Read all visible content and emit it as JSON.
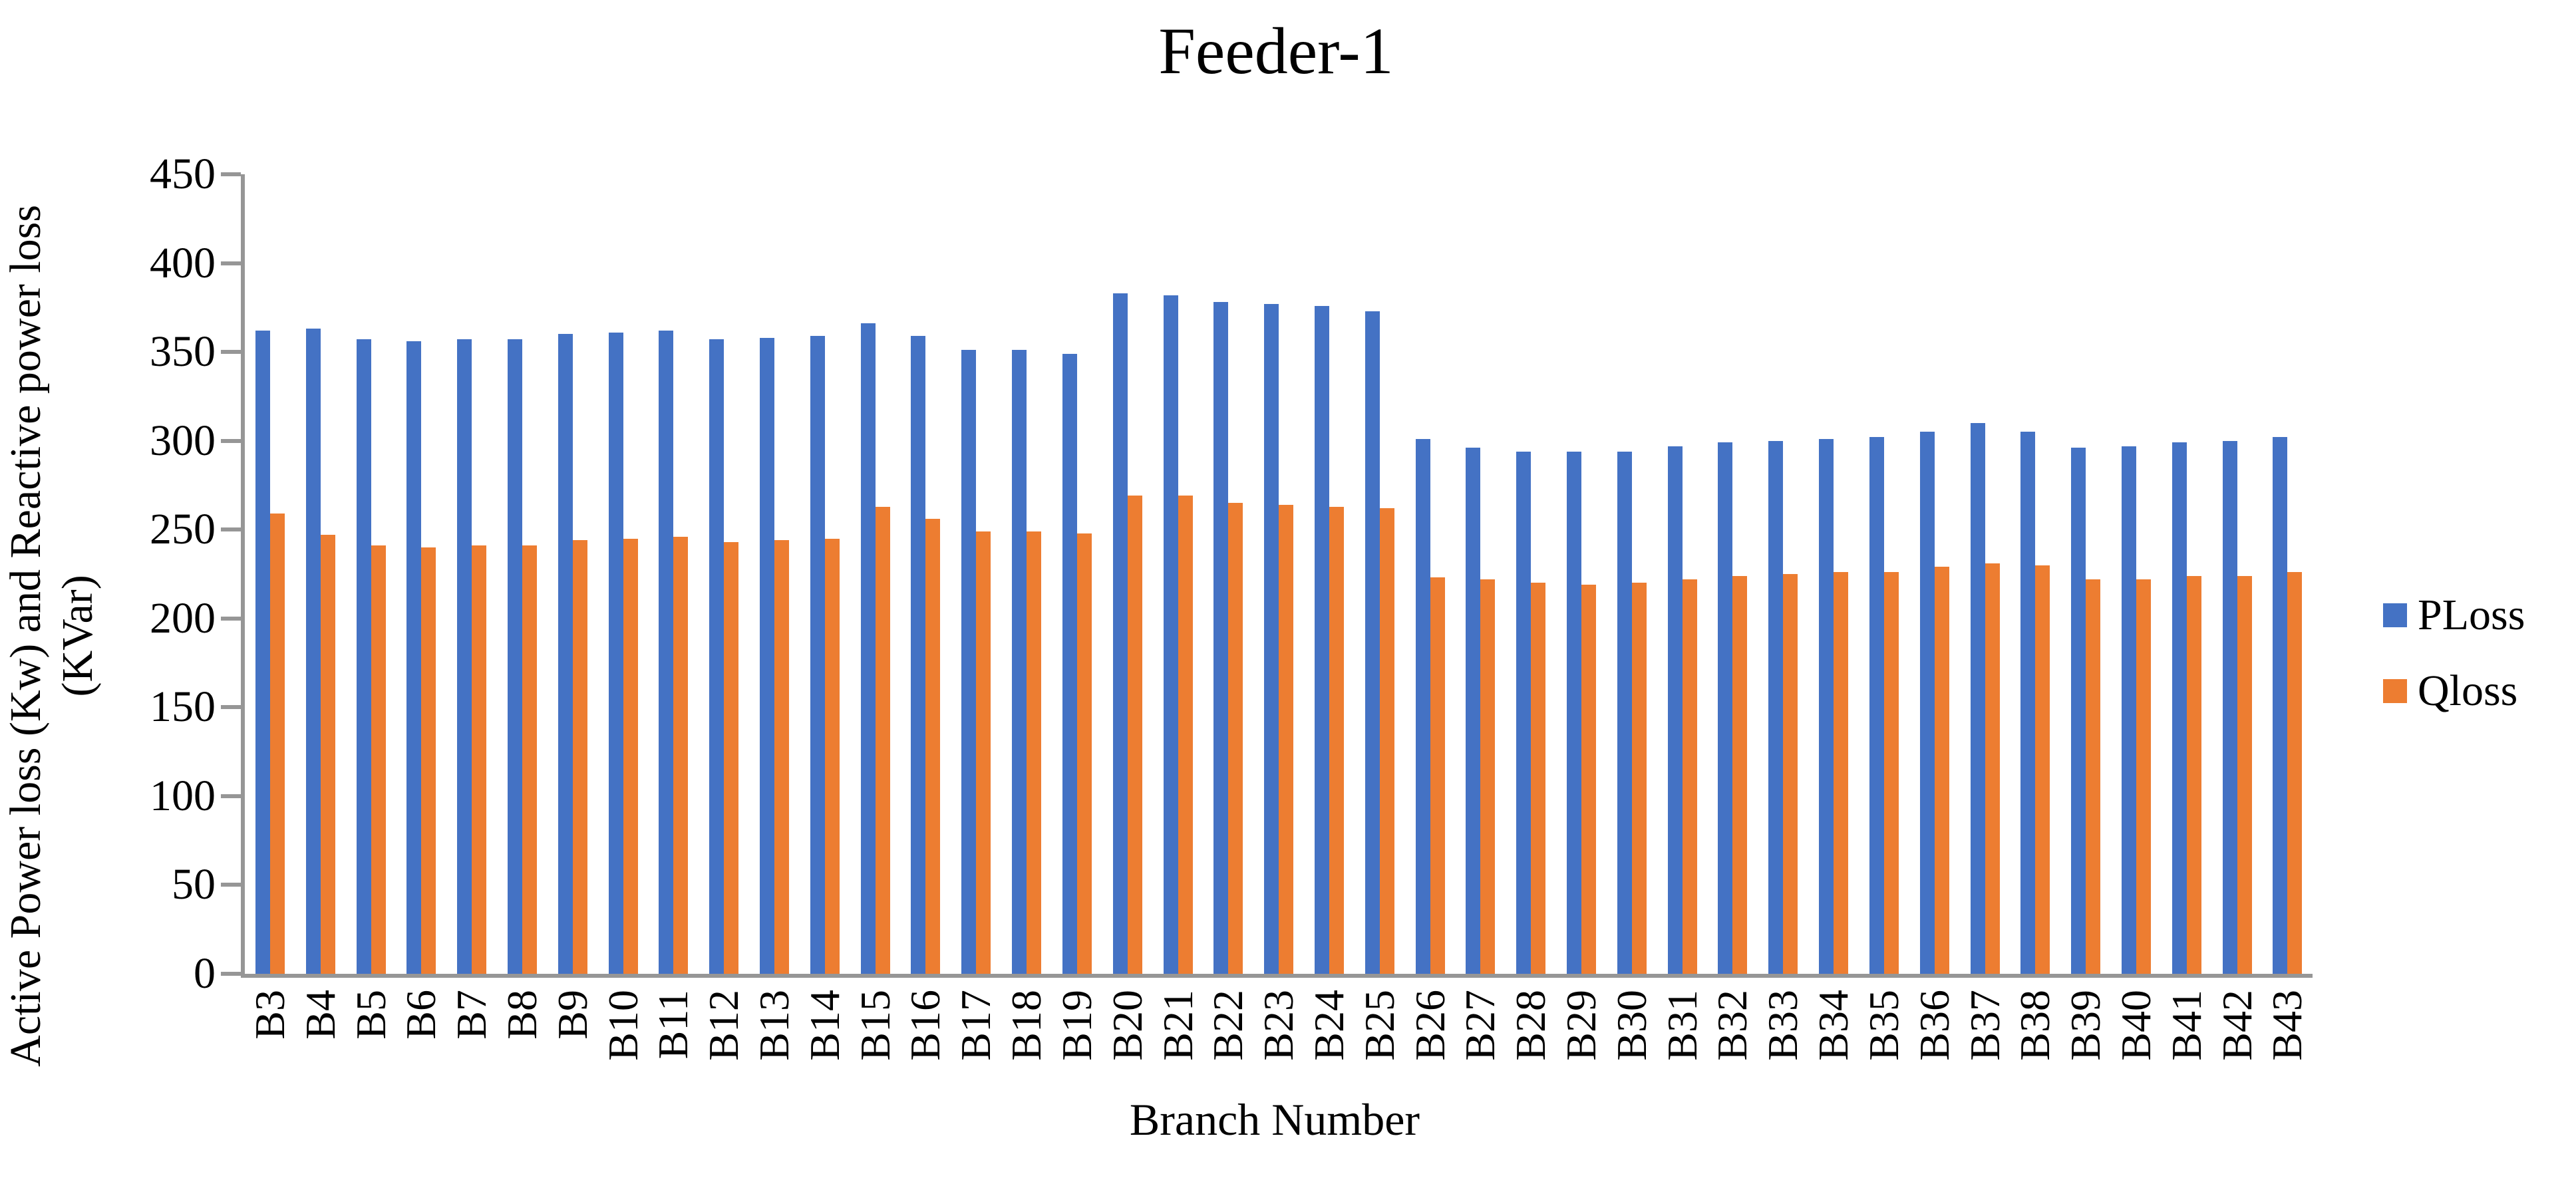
{
  "chart_data": {
    "type": "bar",
    "title": "Feeder-1",
    "xlabel": "Branch Number",
    "ylabel": "Active Power loss (Kw) and Reactive power loss (KVar)",
    "ylabel_line1": "Active Power loss (Kw) and Reactive power loss",
    "ylabel_line2": "(KVar)",
    "ylim": [
      0,
      450
    ],
    "yticks": [
      0,
      50,
      100,
      150,
      200,
      250,
      300,
      350,
      400,
      450
    ],
    "grid": false,
    "legend_position": "right",
    "axis_color": "#969696",
    "categories": [
      "B3",
      "B4",
      "B5",
      "B6",
      "B7",
      "B8",
      "B9",
      "B10",
      "B11",
      "B12",
      "B13",
      "B14",
      "B15",
      "B16",
      "B17",
      "B18",
      "B19",
      "B20",
      "B21",
      "B22",
      "B23",
      "B24",
      "B25",
      "B26",
      "B27",
      "B28",
      "B29",
      "B30",
      "B31",
      "B32",
      "B33",
      "B34",
      "B35",
      "B36",
      "B37",
      "B38",
      "B39",
      "B40",
      "B41",
      "B42",
      "B43"
    ],
    "series": [
      {
        "name": "PLoss",
        "color": "#4472C4",
        "values": [
          362,
          363,
          357,
          356,
          357,
          357,
          360,
          361,
          362,
          357,
          358,
          359,
          366,
          359,
          351,
          351,
          349,
          383,
          382,
          378,
          377,
          376,
          373,
          301,
          296,
          294,
          294,
          294,
          297,
          299,
          300,
          301,
          302,
          305,
          310,
          305,
          296,
          297,
          299,
          300,
          302
        ]
      },
      {
        "name": "Qloss",
        "color": "#ED7D31",
        "values": [
          259,
          247,
          241,
          240,
          241,
          241,
          244,
          245,
          246,
          243,
          244,
          245,
          263,
          256,
          249,
          249,
          248,
          269,
          269,
          265,
          264,
          263,
          262,
          223,
          222,
          220,
          219,
          220,
          222,
          224,
          225,
          226,
          226,
          229,
          231,
          230,
          222,
          222,
          224,
          224,
          226
        ]
      }
    ]
  }
}
